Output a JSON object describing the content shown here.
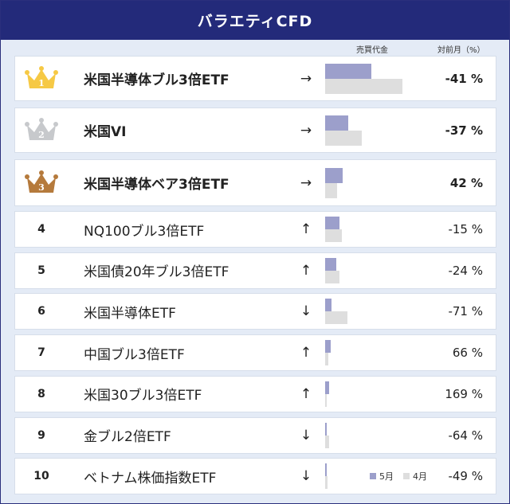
{
  "title": "バラエティCFD",
  "headers": {
    "volume": "売買代金",
    "change": "対前月（%）"
  },
  "legend": {
    "may": "5月",
    "apr": "4月"
  },
  "colors": {
    "header_bg": "#232a7a",
    "bar_may": "#9c9fcb",
    "bar_apr": "#dedede",
    "gold": "#f6c945",
    "silver": "#c7c9cc",
    "bronze": "#b57a3c"
  },
  "chart_data": {
    "type": "bar",
    "xlabel": "",
    "ylabel": "売買代金",
    "series_names": [
      "5月",
      "4月"
    ],
    "rows": [
      {
        "rank": "1",
        "name": "米国半導体ブル3倍ETF",
        "arrow": "→",
        "may": 58,
        "apr": 97,
        "change": "-41 %",
        "crown": "gold-crown-icon"
      },
      {
        "rank": "2",
        "name": "米国VI",
        "arrow": "→",
        "may": 29,
        "apr": 46,
        "change": "-37 %",
        "crown": "silver-crown-icon"
      },
      {
        "rank": "3",
        "name": "米国半導体ベア3倍ETF",
        "arrow": "→",
        "may": 22,
        "apr": 15,
        "change": "42 %",
        "crown": "bronze-crown-icon"
      },
      {
        "rank": "4",
        "name": "NQ100ブル3倍ETF",
        "arrow": "↑",
        "may": 18,
        "apr": 21,
        "change": "-15 %"
      },
      {
        "rank": "5",
        "name": "米国債20年ブル3倍ETF",
        "arrow": "↑",
        "may": 14,
        "apr": 18,
        "change": "-24 %"
      },
      {
        "rank": "6",
        "name": "米国半導体ETF",
        "arrow": "↓",
        "may": 8,
        "apr": 28,
        "change": "-71 %"
      },
      {
        "rank": "7",
        "name": "中国ブル3倍ETF",
        "arrow": "↑",
        "may": 7,
        "apr": 4,
        "change": "66 %"
      },
      {
        "rank": "8",
        "name": "米国30ブル3倍ETF",
        "arrow": "↑",
        "may": 5,
        "apr": 2,
        "change": "169 %"
      },
      {
        "rank": "9",
        "name": "金ブル2倍ETF",
        "arrow": "↓",
        "may": 2,
        "apr": 5,
        "change": "-64 %"
      },
      {
        "rank": "10",
        "name": "ベトナム株価指数ETF",
        "arrow": "↓",
        "may": 2,
        "apr": 3,
        "change": "-49 %"
      }
    ]
  }
}
